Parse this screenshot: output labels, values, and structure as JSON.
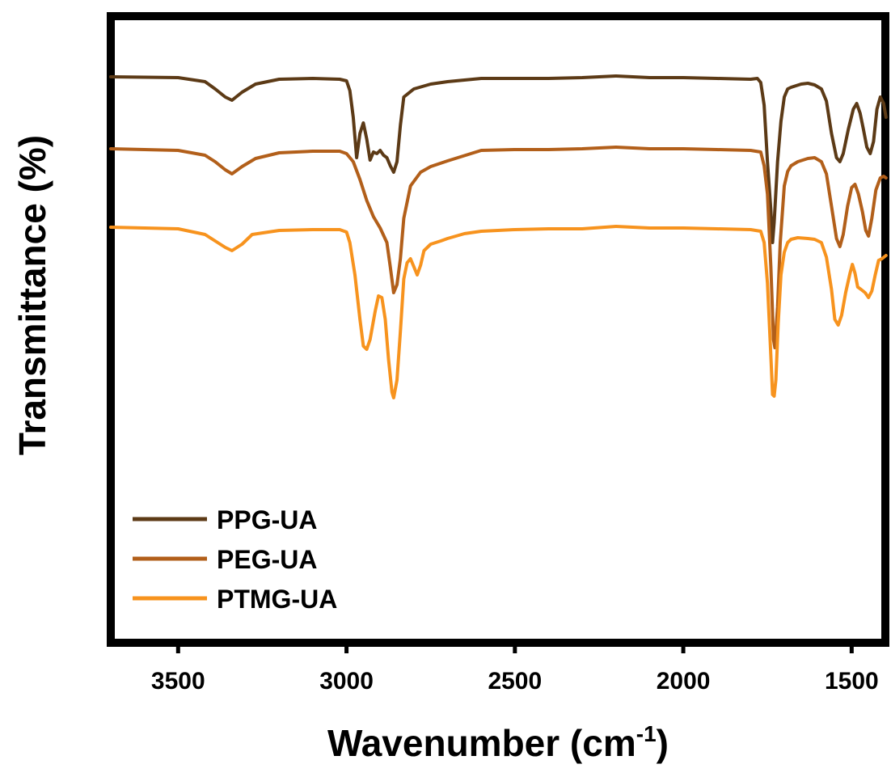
{
  "chart_data": {
    "type": "line",
    "xlabel": "Wavenumber (cm",
    "xlabel_sup": "-1",
    "xlabel_close": ")",
    "ylabel": "Transmittance (%)",
    "xlim": [
      3700,
      1400
    ],
    "x_reversed": true,
    "y_ticks_shown": false,
    "grid": false,
    "legend_position": "bottom-left",
    "x_ticks": [
      "3500",
      "3000",
      "2500",
      "2000",
      "1500"
    ],
    "series": [
      {
        "name": "PPG-UA",
        "color": "#5c3a16",
        "points": [
          [
            3700,
            95
          ],
          [
            3500,
            96
          ],
          [
            3420,
            101
          ],
          [
            3390,
            110
          ],
          [
            3360,
            120
          ],
          [
            3340,
            124
          ],
          [
            3310,
            114
          ],
          [
            3270,
            104
          ],
          [
            3200,
            98
          ],
          [
            3100,
            97
          ],
          [
            3020,
            98
          ],
          [
            3000,
            100
          ],
          [
            2990,
            112
          ],
          [
            2980,
            145
          ],
          [
            2970,
            195
          ],
          [
            2960,
            165
          ],
          [
            2950,
            152
          ],
          [
            2940,
            172
          ],
          [
            2930,
            198
          ],
          [
            2920,
            188
          ],
          [
            2910,
            190
          ],
          [
            2900,
            186
          ],
          [
            2890,
            192
          ],
          [
            2880,
            195
          ],
          [
            2870,
            205
          ],
          [
            2860,
            213
          ],
          [
            2850,
            200
          ],
          [
            2840,
            155
          ],
          [
            2830,
            120
          ],
          [
            2800,
            110
          ],
          [
            2750,
            104
          ],
          [
            2700,
            101
          ],
          [
            2600,
            97
          ],
          [
            2500,
            97
          ],
          [
            2400,
            97
          ],
          [
            2300,
            96
          ],
          [
            2200,
            94
          ],
          [
            2100,
            96
          ],
          [
            2000,
            96
          ],
          [
            1900,
            97
          ],
          [
            1800,
            98
          ],
          [
            1780,
            97
          ],
          [
            1770,
            102
          ],
          [
            1760,
            130
          ],
          [
            1750,
            200
          ],
          [
            1740,
            260
          ],
          [
            1735,
            300
          ],
          [
            1730,
            275
          ],
          [
            1720,
            200
          ],
          [
            1710,
            150
          ],
          [
            1700,
            120
          ],
          [
            1690,
            110
          ],
          [
            1680,
            108
          ],
          [
            1650,
            104
          ],
          [
            1630,
            103
          ],
          [
            1610,
            105
          ],
          [
            1590,
            110
          ],
          [
            1575,
            125
          ],
          [
            1560,
            165
          ],
          [
            1545,
            195
          ],
          [
            1535,
            200
          ],
          [
            1525,
            190
          ],
          [
            1510,
            160
          ],
          [
            1495,
            135
          ],
          [
            1485,
            128
          ],
          [
            1475,
            140
          ],
          [
            1465,
            160
          ],
          [
            1455,
            182
          ],
          [
            1445,
            190
          ],
          [
            1435,
            175
          ],
          [
            1425,
            135
          ],
          [
            1415,
            120
          ],
          [
            1405,
            128
          ],
          [
            1398,
            145
          ]
        ]
      },
      {
        "name": "PEG-UA",
        "color": "#b25f1a",
        "points": [
          [
            3700,
            184
          ],
          [
            3500,
            186
          ],
          [
            3420,
            192
          ],
          [
            3390,
            200
          ],
          [
            3360,
            210
          ],
          [
            3340,
            215
          ],
          [
            3310,
            206
          ],
          [
            3270,
            196
          ],
          [
            3200,
            189
          ],
          [
            3100,
            187
          ],
          [
            3020,
            187
          ],
          [
            3000,
            190
          ],
          [
            2980,
            200
          ],
          [
            2960,
            222
          ],
          [
            2940,
            248
          ],
          [
            2920,
            268
          ],
          [
            2900,
            282
          ],
          [
            2880,
            300
          ],
          [
            2870,
            330
          ],
          [
            2860,
            362
          ],
          [
            2850,
            352
          ],
          [
            2840,
            320
          ],
          [
            2830,
            270
          ],
          [
            2810,
            230
          ],
          [
            2780,
            213
          ],
          [
            2750,
            206
          ],
          [
            2700,
            199
          ],
          [
            2600,
            186
          ],
          [
            2500,
            185
          ],
          [
            2400,
            185
          ],
          [
            2300,
            184
          ],
          [
            2200,
            182
          ],
          [
            2100,
            184
          ],
          [
            2000,
            184
          ],
          [
            1900,
            185
          ],
          [
            1800,
            186
          ],
          [
            1770,
            188
          ],
          [
            1760,
            205
          ],
          [
            1750,
            240
          ],
          [
            1740,
            330
          ],
          [
            1732,
            420
          ],
          [
            1728,
            430
          ],
          [
            1720,
            380
          ],
          [
            1712,
            300
          ],
          [
            1700,
            230
          ],
          [
            1690,
            212
          ],
          [
            1680,
            205
          ],
          [
            1660,
            200
          ],
          [
            1630,
            196
          ],
          [
            1610,
            195
          ],
          [
            1590,
            200
          ],
          [
            1575,
            215
          ],
          [
            1560,
            255
          ],
          [
            1545,
            295
          ],
          [
            1535,
            305
          ],
          [
            1525,
            290
          ],
          [
            1512,
            255
          ],
          [
            1500,
            232
          ],
          [
            1490,
            228
          ],
          [
            1480,
            240
          ],
          [
            1468,
            262
          ],
          [
            1458,
            285
          ],
          [
            1450,
            292
          ],
          [
            1440,
            270
          ],
          [
            1428,
            235
          ],
          [
            1415,
            220
          ],
          [
            1405,
            218
          ],
          [
            1398,
            220
          ]
        ]
      },
      {
        "name": "PTMG-UA",
        "color": "#f7931e",
        "points": [
          [
            3700,
            281
          ],
          [
            3500,
            283
          ],
          [
            3420,
            290
          ],
          [
            3390,
            298
          ],
          [
            3360,
            306
          ],
          [
            3340,
            310
          ],
          [
            3310,
            302
          ],
          [
            3280,
            290
          ],
          [
            3200,
            285
          ],
          [
            3100,
            284
          ],
          [
            3020,
            284
          ],
          [
            3000,
            287
          ],
          [
            2990,
            300
          ],
          [
            2975,
            340
          ],
          [
            2960,
            395
          ],
          [
            2950,
            428
          ],
          [
            2940,
            432
          ],
          [
            2930,
            420
          ],
          [
            2915,
            385
          ],
          [
            2905,
            366
          ],
          [
            2895,
            368
          ],
          [
            2885,
            395
          ],
          [
            2875,
            445
          ],
          [
            2865,
            485
          ],
          [
            2860,
            492
          ],
          [
            2850,
            470
          ],
          [
            2840,
            410
          ],
          [
            2830,
            345
          ],
          [
            2820,
            325
          ],
          [
            2810,
            320
          ],
          [
            2800,
            330
          ],
          [
            2790,
            340
          ],
          [
            2780,
            328
          ],
          [
            2770,
            310
          ],
          [
            2750,
            302
          ],
          [
            2720,
            298
          ],
          [
            2700,
            295
          ],
          [
            2650,
            289
          ],
          [
            2600,
            286
          ],
          [
            2500,
            284
          ],
          [
            2400,
            283
          ],
          [
            2300,
            283
          ],
          [
            2200,
            280
          ],
          [
            2100,
            282
          ],
          [
            2000,
            282
          ],
          [
            1900,
            283
          ],
          [
            1800,
            284
          ],
          [
            1770,
            286
          ],
          [
            1760,
            300
          ],
          [
            1750,
            350
          ],
          [
            1740,
            440
          ],
          [
            1735,
            488
          ],
          [
            1730,
            490
          ],
          [
            1725,
            470
          ],
          [
            1718,
            400
          ],
          [
            1710,
            340
          ],
          [
            1700,
            312
          ],
          [
            1690,
            300
          ],
          [
            1680,
            296
          ],
          [
            1660,
            294
          ],
          [
            1630,
            295
          ],
          [
            1610,
            296
          ],
          [
            1590,
            300
          ],
          [
            1575,
            318
          ],
          [
            1560,
            358
          ],
          [
            1550,
            395
          ],
          [
            1540,
            402
          ],
          [
            1530,
            390
          ],
          [
            1518,
            362
          ],
          [
            1505,
            338
          ],
          [
            1498,
            327
          ],
          [
            1490,
            338
          ],
          [
            1482,
            355
          ],
          [
            1472,
            358
          ],
          [
            1460,
            362
          ],
          [
            1450,
            368
          ],
          [
            1440,
            360
          ],
          [
            1430,
            340
          ],
          [
            1420,
            322
          ],
          [
            1410,
            320
          ],
          [
            1398,
            316
          ]
        ]
      }
    ]
  }
}
